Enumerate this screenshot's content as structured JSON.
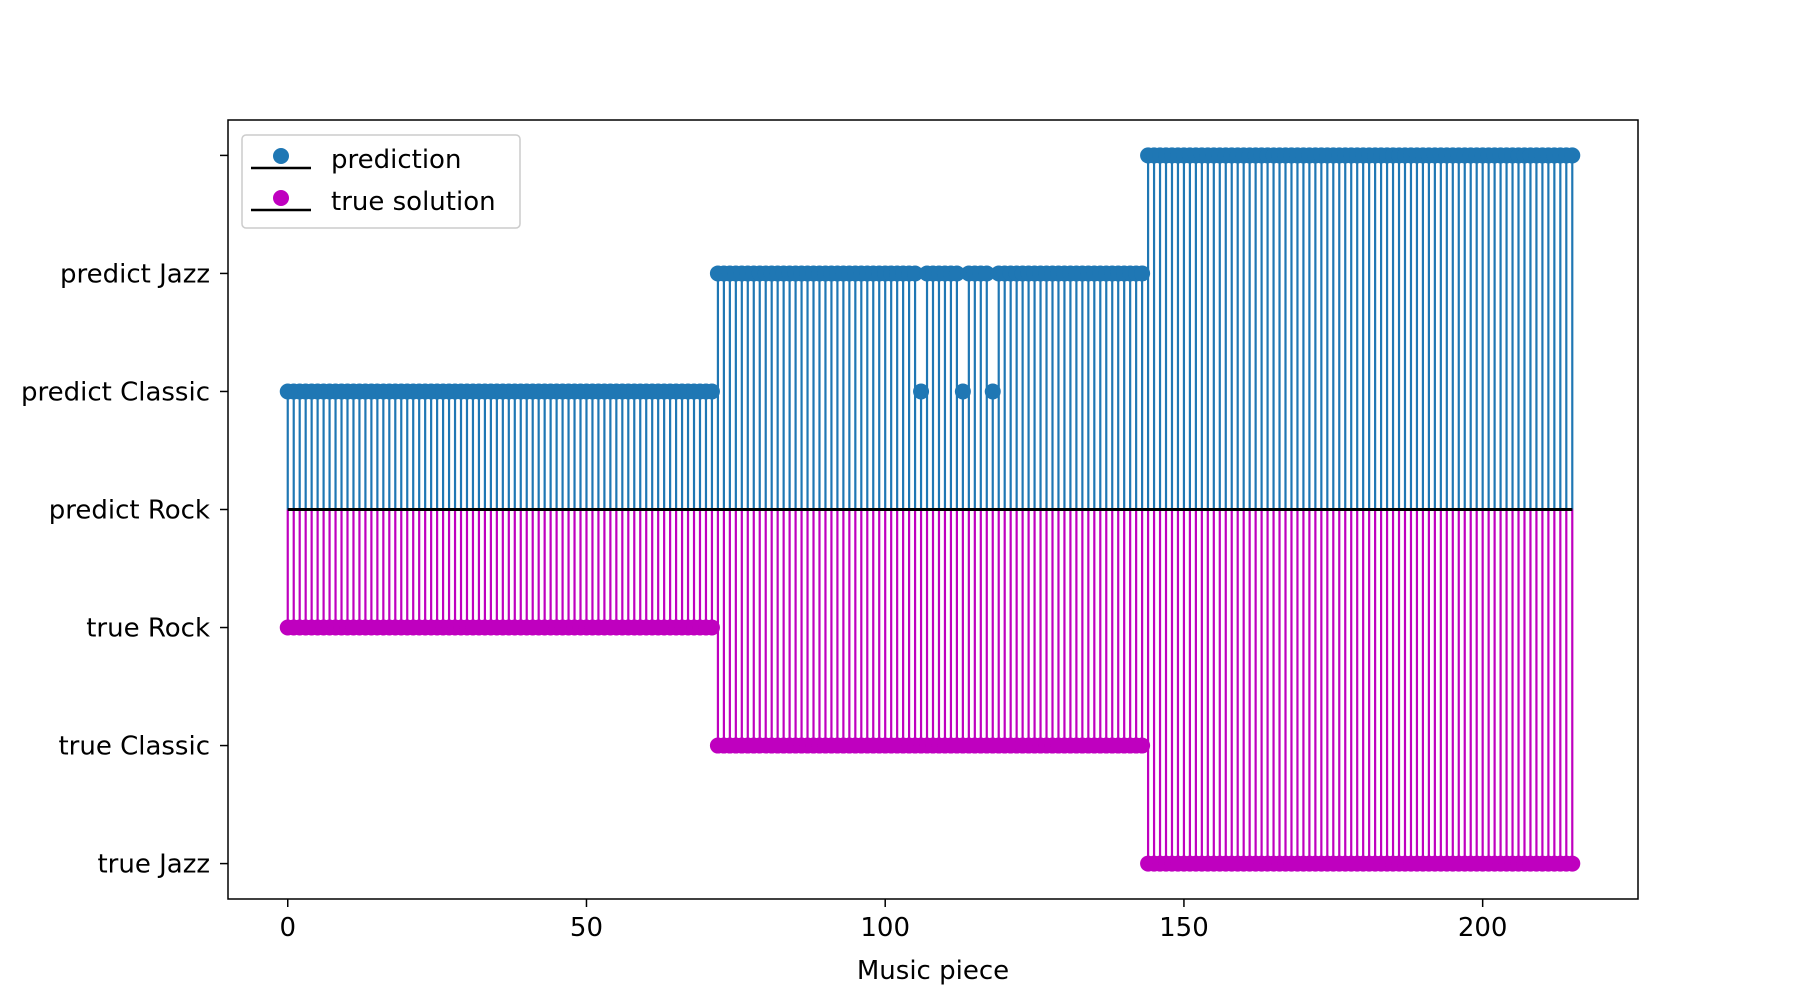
{
  "chart_data": {
    "type": "stem",
    "title": "",
    "xlabel": "Music piece",
    "ylabel": "",
    "xlim": [
      -10,
      226
    ],
    "ylim": [
      -3.3,
      3.3
    ],
    "x_ticks": [
      0,
      50,
      100,
      150,
      200
    ],
    "y_ticks": [
      {
        "value": -3,
        "label": "true Jazz"
      },
      {
        "value": -2,
        "label": "true Classic"
      },
      {
        "value": -1,
        "label": "true Rock"
      },
      {
        "value": 0,
        "label": "predict Rock"
      },
      {
        "value": 1,
        "label": "predict Classic"
      },
      {
        "value": 2,
        "label": "predict Jazz"
      },
      {
        "value": 3,
        "label": ""
      }
    ],
    "baseline": 0,
    "legend": {
      "position": "upper-left",
      "entries": [
        "prediction",
        "true solution"
      ]
    },
    "segments": [
      {
        "x_start": 0,
        "x_end": 71,
        "true_value": -1,
        "predicted_value": 1
      },
      {
        "x_start": 72,
        "x_end": 143,
        "true_value": -2,
        "predicted_value": 2
      },
      {
        "x_start": 144,
        "x_end": 215,
        "true_value": -3,
        "predicted_value": 3
      }
    ],
    "prediction_exceptions": [
      {
        "x": 106,
        "value": 1
      },
      {
        "x": 113,
        "value": 1
      },
      {
        "x": 118,
        "value": 1
      }
    ],
    "series": [
      {
        "name": "prediction",
        "color": "#1f77b4"
      },
      {
        "name": "true solution",
        "color": "#bf00bf"
      }
    ],
    "baseline_color": "#000000"
  }
}
